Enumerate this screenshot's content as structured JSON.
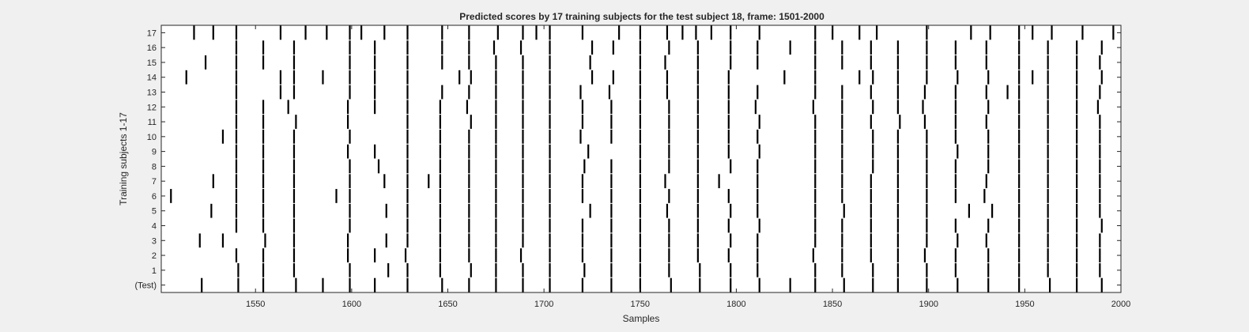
{
  "chart_data": {
    "type": "raster",
    "title": "Predicted scores by 17 training subjects for the test subject 18, frame: 1501-2000",
    "xlabel": "Samples",
    "ylabel": "Training subjects 1-17",
    "xlim": [
      1501,
      2000
    ],
    "x_ticks": [
      1550,
      1600,
      1650,
      1700,
      1750,
      1800,
      1850,
      1900,
      1950,
      2000
    ],
    "y_labels": [
      "(Test)",
      "1",
      "2",
      "3",
      "4",
      "5",
      "6",
      "7",
      "8",
      "9",
      "10",
      "11",
      "12",
      "13",
      "14",
      "15",
      "16",
      "17"
    ],
    "grid": false,
    "rows": [
      {
        "label": "(Test)",
        "events": [
          1522,
          1541,
          1554,
          1571,
          1585,
          1599,
          1612,
          1629,
          1647,
          1661,
          1675,
          1689,
          1703,
          1720,
          1735,
          1750,
          1766,
          1781,
          1797,
          1812,
          1828,
          1841,
          1856,
          1871,
          1884,
          1899,
          1915,
          1931,
          1947,
          1963,
          1977,
          1990
        ]
      },
      {
        "label": "1",
        "events": [
          1541,
          1554,
          1570,
          1599,
          1619,
          1629,
          1646,
          1662,
          1675,
          1689,
          1703,
          1721,
          1735,
          1750,
          1765,
          1781,
          1797,
          1811,
          1841,
          1855,
          1871,
          1884,
          1899,
          1914,
          1931,
          1947,
          1962,
          1977,
          1989
        ]
      },
      {
        "label": "2",
        "events": [
          1540,
          1554,
          1570,
          1598,
          1612,
          1628,
          1646,
          1661,
          1675,
          1688,
          1703,
          1720,
          1735,
          1750,
          1765,
          1780,
          1796,
          1811,
          1840,
          1855,
          1870,
          1884,
          1898,
          1914,
          1931,
          1947,
          1962,
          1977,
          1989
        ]
      },
      {
        "label": "3",
        "events": [
          1521,
          1533,
          1555,
          1570,
          1598,
          1618,
          1629,
          1646,
          1661,
          1675,
          1689,
          1703,
          1720,
          1735,
          1750,
          1765,
          1780,
          1797,
          1811,
          1841,
          1855,
          1870,
          1884,
          1899,
          1915,
          1930,
          1947,
          1962,
          1977,
          1989
        ]
      },
      {
        "label": "4",
        "events": [
          1540,
          1554,
          1570,
          1599,
          1629,
          1646,
          1661,
          1675,
          1689,
          1703,
          1720,
          1735,
          1750,
          1765,
          1780,
          1796,
          1812,
          1841,
          1855,
          1870,
          1884,
          1899,
          1914,
          1931,
          1947,
          1962,
          1977,
          1990
        ]
      },
      {
        "label": "5",
        "events": [
          1527,
          1540,
          1554,
          1570,
          1599,
          1618,
          1629,
          1646,
          1661,
          1675,
          1689,
          1703,
          1724,
          1735,
          1750,
          1764,
          1780,
          1797,
          1811,
          1841,
          1856,
          1870,
          1884,
          1899,
          1921,
          1933,
          1947,
          1962,
          1977,
          1989
        ]
      },
      {
        "label": "6",
        "events": [
          1506,
          1540,
          1554,
          1570,
          1592,
          1599,
          1629,
          1646,
          1661,
          1675,
          1689,
          1703,
          1720,
          1735,
          1750,
          1765,
          1780,
          1796,
          1811,
          1841,
          1855,
          1870,
          1884,
          1899,
          1914,
          1929,
          1947,
          1962,
          1977,
          1989
        ]
      },
      {
        "label": "7",
        "events": [
          1528,
          1540,
          1554,
          1570,
          1599,
          1617,
          1629,
          1640,
          1646,
          1661,
          1675,
          1689,
          1703,
          1720,
          1735,
          1750,
          1763,
          1780,
          1791,
          1811,
          1841,
          1855,
          1870,
          1884,
          1899,
          1914,
          1930,
          1947,
          1962,
          1977,
          1989
        ]
      },
      {
        "label": "8",
        "events": [
          1540,
          1554,
          1570,
          1599,
          1614,
          1629,
          1646,
          1661,
          1675,
          1689,
          1703,
          1721,
          1735,
          1750,
          1765,
          1780,
          1797,
          1811,
          1841,
          1855,
          1871,
          1884,
          1899,
          1914,
          1931,
          1947,
          1962,
          1977,
          1989
        ]
      },
      {
        "label": "9",
        "events": [
          1540,
          1554,
          1570,
          1598,
          1612,
          1629,
          1646,
          1661,
          1675,
          1689,
          1703,
          1723,
          1750,
          1765,
          1780,
          1796,
          1812,
          1841,
          1855,
          1871,
          1884,
          1899,
          1915,
          1931,
          1947,
          1962,
          1977,
          1989
        ]
      },
      {
        "label": "10",
        "events": [
          1533,
          1540,
          1554,
          1570,
          1599,
          1629,
          1646,
          1661,
          1675,
          1689,
          1703,
          1719,
          1735,
          1750,
          1765,
          1780,
          1796,
          1811,
          1841,
          1855,
          1871,
          1884,
          1899,
          1914,
          1931,
          1947,
          1962,
          1977,
          1989
        ]
      },
      {
        "label": "11",
        "events": [
          1540,
          1554,
          1571,
          1598,
          1629,
          1646,
          1662,
          1675,
          1689,
          1703,
          1720,
          1735,
          1750,
          1765,
          1780,
          1796,
          1812,
          1841,
          1855,
          1870,
          1885,
          1898,
          1914,
          1930,
          1947,
          1962,
          1977,
          1989
        ]
      },
      {
        "label": "12",
        "events": [
          1540,
          1554,
          1567,
          1598,
          1612,
          1629,
          1646,
          1660,
          1675,
          1689,
          1703,
          1720,
          1735,
          1750,
          1765,
          1780,
          1796,
          1810,
          1840,
          1855,
          1871,
          1884,
          1897,
          1914,
          1931,
          1947,
          1962,
          1977,
          1988
        ]
      },
      {
        "label": "13",
        "events": [
          1540,
          1563,
          1570,
          1599,
          1612,
          1629,
          1647,
          1661,
          1675,
          1689,
          1703,
          1719,
          1734,
          1750,
          1764,
          1780,
          1796,
          1811,
          1841,
          1855,
          1870,
          1884,
          1898,
          1914,
          1930,
          1941,
          1947,
          1962,
          1977,
          1989
        ]
      },
      {
        "label": "14",
        "events": [
          1514,
          1540,
          1563,
          1570,
          1585,
          1599,
          1612,
          1629,
          1656,
          1662,
          1675,
          1689,
          1703,
          1725,
          1736,
          1750,
          1764,
          1780,
          1796,
          1825,
          1841,
          1864,
          1871,
          1884,
          1899,
          1915,
          1931,
          1947,
          1954,
          1962,
          1977,
          1990
        ]
      },
      {
        "label": "15",
        "events": [
          1524,
          1540,
          1554,
          1570,
          1599,
          1612,
          1629,
          1647,
          1661,
          1675,
          1689,
          1703,
          1724,
          1750,
          1763,
          1780,
          1797,
          1811,
          1841,
          1855,
          1870,
          1884,
          1899,
          1914,
          1930,
          1947,
          1962,
          1977,
          1989
        ]
      },
      {
        "label": "16",
        "events": [
          1540,
          1554,
          1570,
          1599,
          1612,
          1629,
          1647,
          1661,
          1674,
          1688,
          1703,
          1725,
          1736,
          1750,
          1765,
          1780,
          1797,
          1811,
          1828,
          1841,
          1855,
          1870,
          1884,
          1899,
          1914,
          1930,
          1947,
          1962,
          1977,
          1990
        ]
      },
      {
        "label": "17",
        "events": [
          1518,
          1528,
          1540,
          1563,
          1576,
          1587,
          1599,
          1605,
          1617,
          1629,
          1647,
          1661,
          1676,
          1689,
          1696,
          1703,
          1720,
          1739,
          1750,
          1764,
          1772,
          1779,
          1787,
          1797,
          1812,
          1841,
          1850,
          1864,
          1873,
          1899,
          1922,
          1932,
          1947,
          1954,
          1964,
          1980,
          1996
        ]
      }
    ]
  }
}
